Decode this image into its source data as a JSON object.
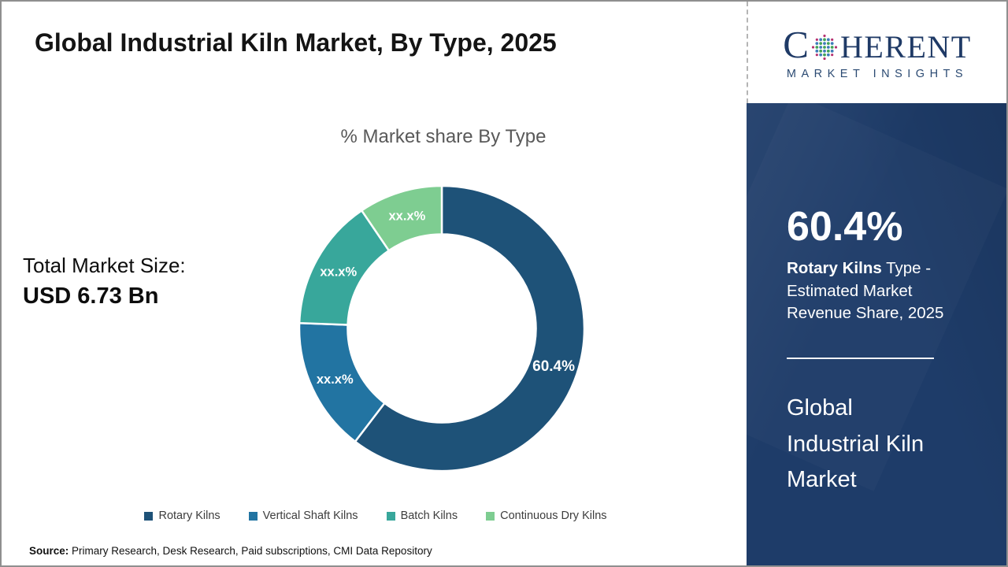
{
  "page": {
    "title": "Global Industrial Kiln Market, By Type, 2025",
    "source_label": "Source:",
    "source_text": "Primary Research, Desk Research, Paid subscriptions, CMI Data Repository"
  },
  "logo": {
    "brand_first_letter": "C",
    "brand_rest": "HERENT",
    "subtitle": "MARKET INSIGHTS"
  },
  "left_panel": {
    "total_label": "Total Market Size:",
    "total_value": "USD 6.73 Bn"
  },
  "chart_data": {
    "type": "pie",
    "subtype": "donut",
    "title": "% Market share By Type",
    "categories": [
      "Rotary Kilns",
      "Vertical Shaft Kilns",
      "Batch Kilns",
      "Continuous Dry Kilns"
    ],
    "values": [
      60.4,
      15.2,
      14.9,
      9.5
    ],
    "value_labels": [
      "60.4%",
      "xx.x%",
      "xx.x%",
      "xx.x%"
    ],
    "colors": [
      "#1e5278",
      "#2274a2",
      "#38a79b",
      "#7ecd91"
    ],
    "legend_position": "bottom",
    "start_angle_deg": 0,
    "direction": "clockwise"
  },
  "sidebar": {
    "stat_value": "60.4%",
    "stat_desc_bold": "Rotary Kilns",
    "stat_desc_line1_rest": "Type -",
    "stat_desc_line2": "Estimated Market",
    "stat_desc_line3": "Revenue Share, 2025",
    "market_title_line1": "Global",
    "market_title_line2": "Industrial Kiln",
    "market_title_line3": "Market"
  }
}
